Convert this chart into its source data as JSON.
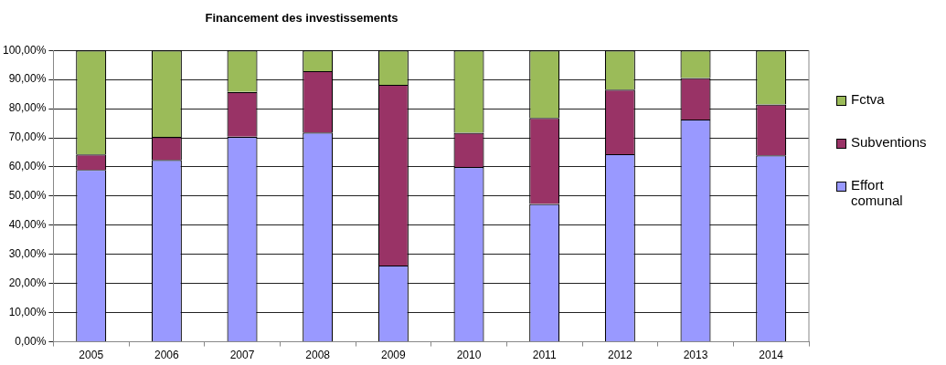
{
  "chart_data": {
    "type": "bar",
    "title": "Financement des investissements",
    "stacked": true,
    "categories": [
      "2005",
      "2006",
      "2007",
      "2008",
      "2009",
      "2010",
      "2011",
      "2012",
      "2013",
      "2014"
    ],
    "series": [
      {
        "name": "Effort comunal",
        "color": "#9999ff",
        "values": [
          59,
          62.4,
          70.4,
          71.8,
          26.2,
          60,
          47.3,
          64.4,
          76.3,
          64
        ]
      },
      {
        "name": "Subventions",
        "color": "#993366",
        "values": [
          5.3,
          7.9,
          15.3,
          21.1,
          62,
          11.7,
          29.5,
          22.1,
          14.2,
          17.4
        ]
      },
      {
        "name": "Fctva",
        "color": "#9bbb59",
        "values": [
          35.7,
          29.7,
          14.3,
          7.1,
          11.8,
          28.3,
          23.2,
          13.5,
          9.5,
          18.6
        ]
      }
    ],
    "ylim": [
      0,
      100
    ],
    "yticks": [
      {
        "value": 0,
        "label": "0,00%"
      },
      {
        "value": 10,
        "label": "10,00%"
      },
      {
        "value": 20,
        "label": "20,00%"
      },
      {
        "value": 30,
        "label": "30,00%"
      },
      {
        "value": 40,
        "label": "40,00%"
      },
      {
        "value": 50,
        "label": "50,00%"
      },
      {
        "value": 60,
        "label": "60,00%"
      },
      {
        "value": 70,
        "label": "70,00%"
      },
      {
        "value": 80,
        "label": "80,00%"
      },
      {
        "value": 90,
        "label": "90,00%"
      },
      {
        "value": 100,
        "label": "100,00%"
      }
    ],
    "grid": "y",
    "legend": "right"
  }
}
